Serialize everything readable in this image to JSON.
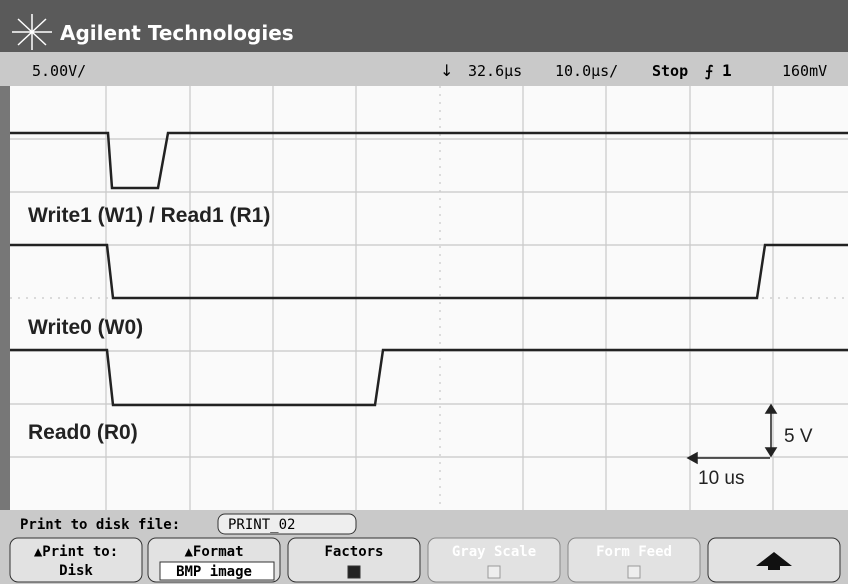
{
  "header": {
    "brand": "Agilent Technologies"
  },
  "status": {
    "channel_scale": "5.00V/",
    "delay": "32.6µs",
    "time_scale": "10.0µs/",
    "run_state": "Stop",
    "trigger_source": "1",
    "trigger_level": "160mV"
  },
  "traces": [
    {
      "label": "Write1 (W1) / Read1 (R1)"
    },
    {
      "label": "Write0 (W0)"
    },
    {
      "label": "Read0 (R0)"
    }
  ],
  "scale_annotations": {
    "vertical": "5 V",
    "horizontal": "10 us"
  },
  "file_row": {
    "label": "Print to disk file:",
    "filename": "PRINT_02"
  },
  "softkeys": [
    {
      "line1": "Print to:",
      "line2": "Disk"
    },
    {
      "line1": "Format",
      "line2": "BMP image"
    },
    {
      "line1": "Factors"
    },
    {
      "line1": "Gray Scale"
    },
    {
      "line1": "Form Feed"
    }
  ]
}
